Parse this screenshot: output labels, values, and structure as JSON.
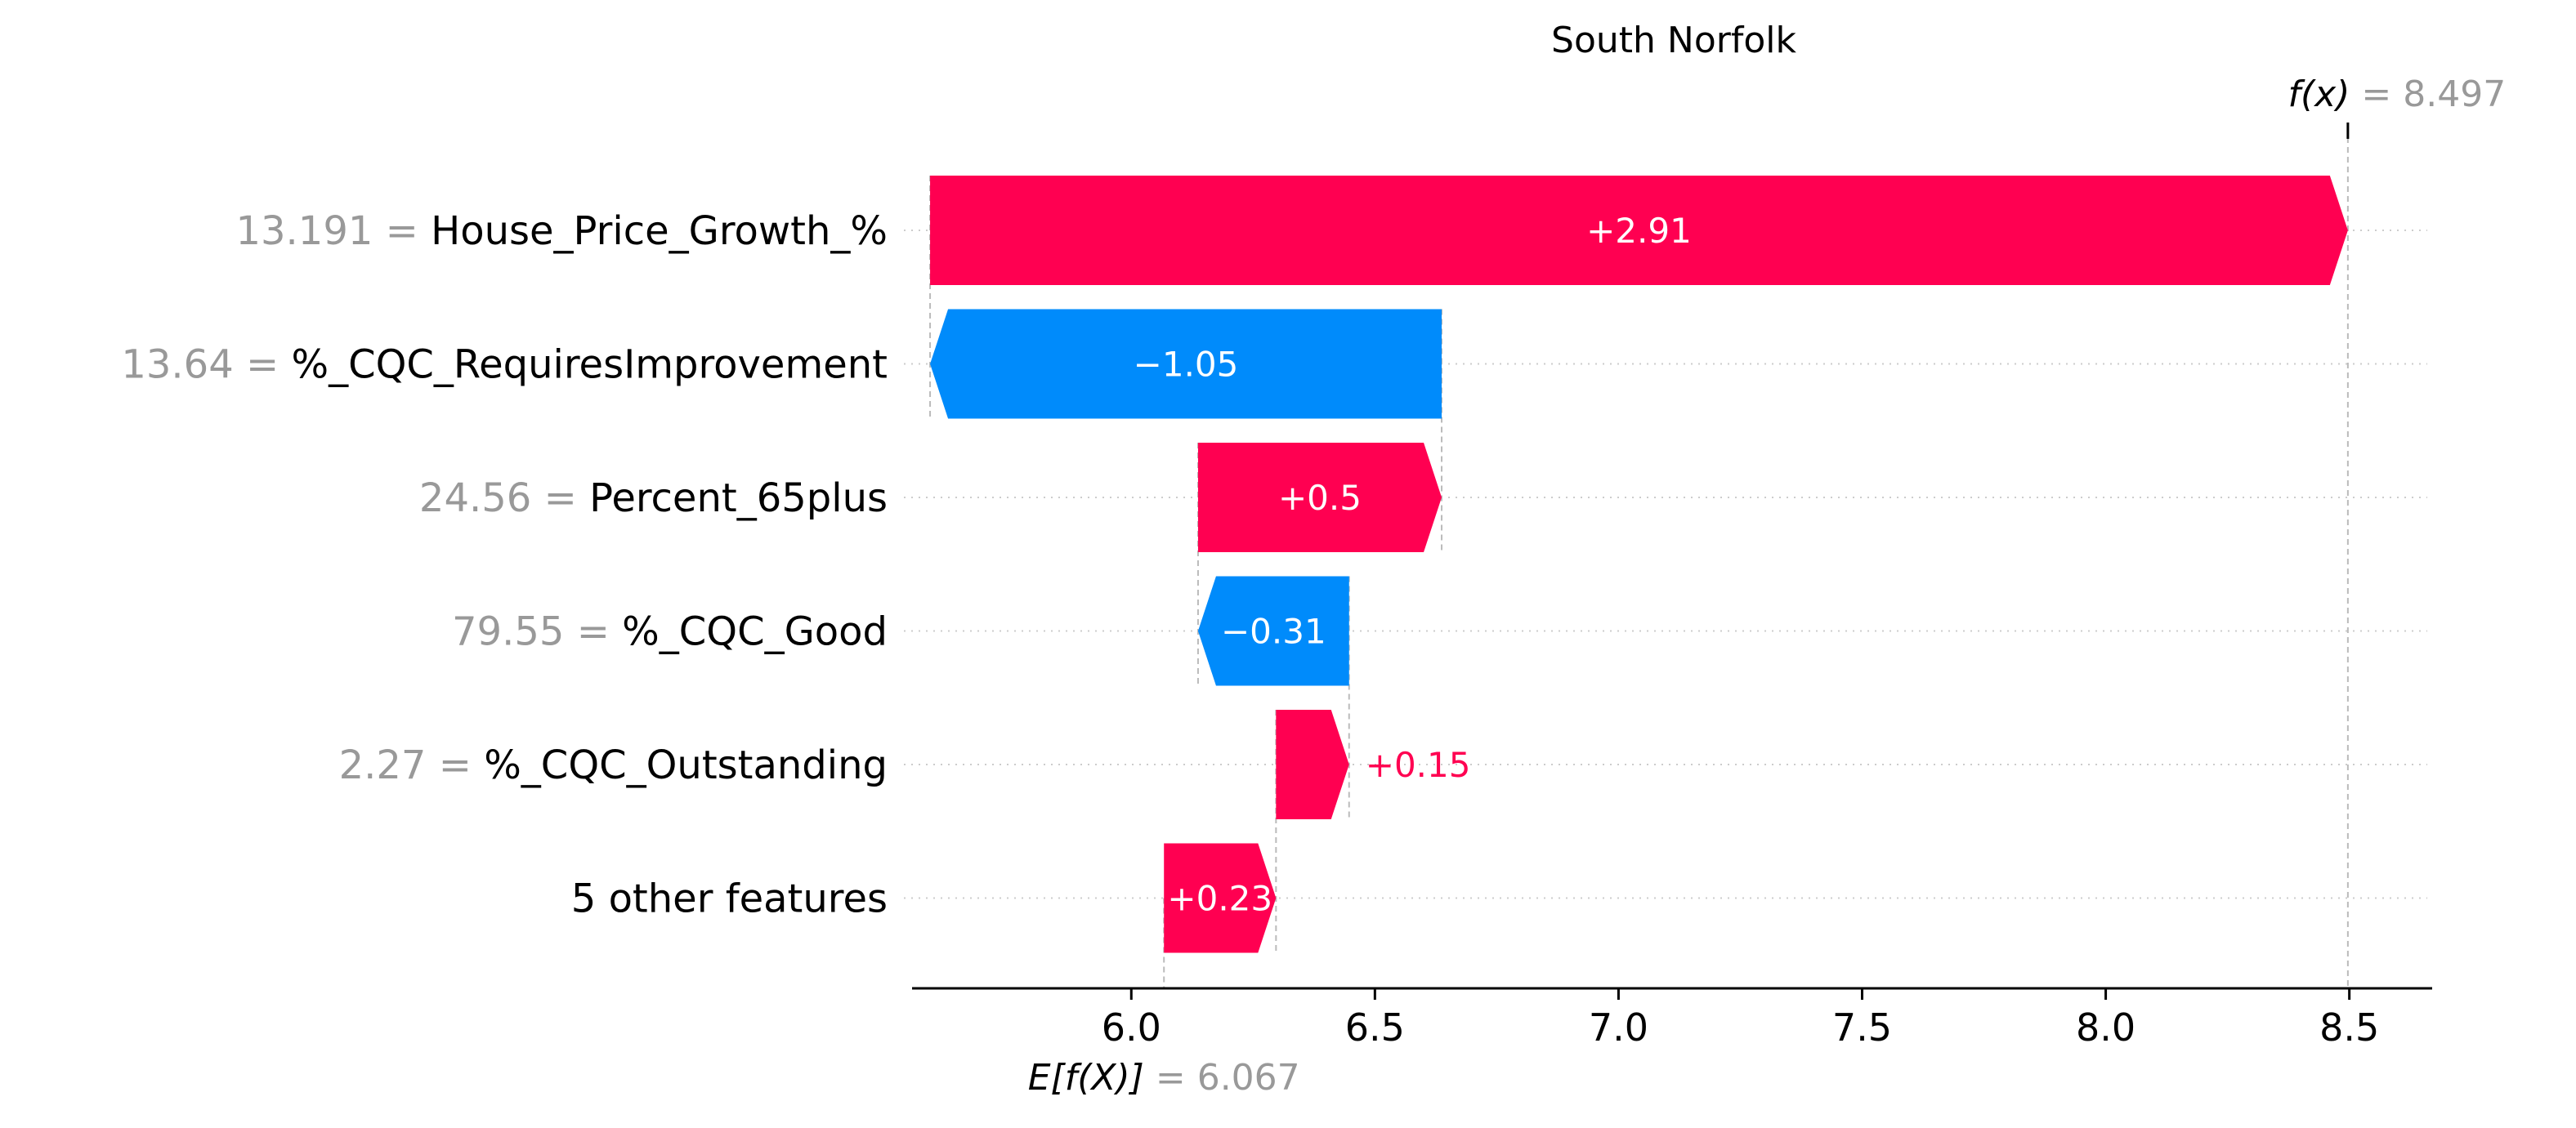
{
  "chart_data": {
    "type": "waterfall",
    "title": "South Norfolk",
    "xlim": [
      5.55,
      8.67
    ],
    "x_ticks": [
      "6.0",
      "6.5",
      "7.0",
      "7.5",
      "8.0",
      "8.5"
    ],
    "base_value": 6.067,
    "base_label": "E[f(X)]",
    "base_value_text": "= 6.067",
    "output_value": 8.497,
    "output_label": "f(x)",
    "output_value_text": "= 8.497",
    "features": [
      {
        "value": "13.191",
        "name": "House_Price_Growth_%",
        "contribution": 2.91,
        "label": "+2.91"
      },
      {
        "value": "13.64",
        "name": "%_CQC_RequiresImprovement",
        "contribution": -1.05,
        "label": "−1.05"
      },
      {
        "value": "24.56",
        "name": "Percent_65plus",
        "contribution": 0.5,
        "label": "+0.5"
      },
      {
        "value": "79.55",
        "name": "%_CQC_Good",
        "contribution": -0.31,
        "label": "−0.31"
      },
      {
        "value": "2.27",
        "name": "%_CQC_Outstanding",
        "contribution": 0.15,
        "label": "+0.15"
      },
      {
        "value": "",
        "name": "5 other features",
        "contribution": 0.23,
        "label": "+0.23"
      }
    ],
    "colors": {
      "positive": "#ff0051",
      "negative": "#008bfb",
      "axis": "#000000",
      "muted_text": "#999999",
      "gridline": "#cccccc"
    }
  }
}
